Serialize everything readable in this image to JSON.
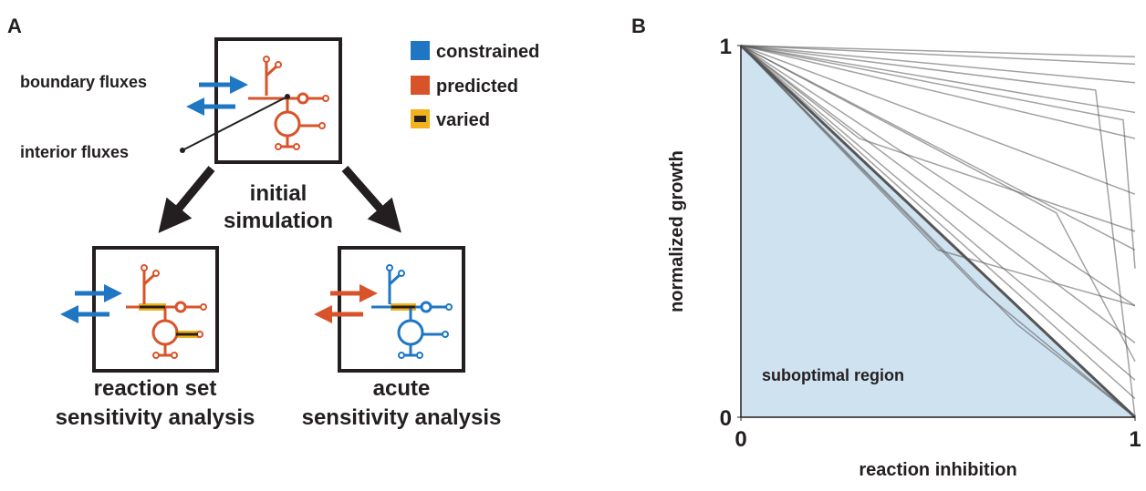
{
  "panel_a": {
    "label": "A",
    "boundary_fluxes": "boundary fluxes",
    "interior_fluxes": "interior fluxes",
    "initial_simulation": [
      "initial",
      "simulation"
    ],
    "legend": [
      "constrained",
      "predicted",
      "varied"
    ],
    "reaction_set": [
      "reaction set",
      "sensitivity analysis"
    ],
    "acute": [
      "acute",
      "sensitivity analysis"
    ]
  },
  "chart_data": {
    "type": "line",
    "panel_label": "B",
    "x_label": "reaction inhibition",
    "y_label": "normalized growth",
    "annotation": "suboptimal region",
    "color": "#555555",
    "fill_color": "#cfe2f0",
    "xlim": [
      0,
      1
    ],
    "ylim": [
      0,
      1
    ],
    "xticks": [
      0,
      1
    ],
    "yticks": [
      0,
      1
    ],
    "series": [
      {
        "x": [
          0,
          1
        ],
        "values": [
          1,
          0.97
        ]
      },
      {
        "x": [
          0,
          1
        ],
        "values": [
          1,
          0.95
        ]
      },
      {
        "x": [
          0,
          1
        ],
        "values": [
          1,
          0.9
        ]
      },
      {
        "x": [
          0,
          1
        ],
        "values": [
          1,
          0.82
        ]
      },
      {
        "x": [
          0,
          1
        ],
        "values": [
          1,
          0.75
        ]
      },
      {
        "x": [
          0,
          1
        ],
        "values": [
          1,
          0.6
        ]
      },
      {
        "x": [
          0,
          1
        ],
        "values": [
          1,
          0.45
        ]
      },
      {
        "x": [
          0,
          1
        ],
        "values": [
          1,
          0.3
        ]
      },
      {
        "x": [
          0,
          1
        ],
        "values": [
          1,
          0.2
        ]
      },
      {
        "x": [
          0,
          1
        ],
        "values": [
          1,
          0.1
        ]
      },
      {
        "x": [
          0,
          1
        ],
        "values": [
          1,
          0.05
        ]
      },
      {
        "x": [
          0,
          0.9,
          1
        ],
        "values": [
          1,
          0.88,
          0
        ]
      },
      {
        "x": [
          0,
          0.97,
          1
        ],
        "values": [
          1,
          0.8,
          0.4
        ]
      },
      {
        "x": [
          0,
          0.5,
          1
        ],
        "values": [
          1,
          0.45,
          0.3
        ]
      },
      {
        "x": [
          0,
          0.6,
          1
        ],
        "values": [
          1,
          0.35,
          0
        ]
      },
      {
        "x": [
          0,
          0.7,
          1
        ],
        "values": [
          1,
          0.25,
          0
        ]
      },
      {
        "x": [
          0,
          0.3,
          1
        ],
        "values": [
          1,
          0.75,
          0.5
        ]
      },
      {
        "x": [
          0,
          0.8,
          1
        ],
        "values": [
          1,
          0.55,
          0.15
        ]
      },
      {
        "x": [
          0,
          1
        ],
        "values": [
          1,
          0
        ]
      }
    ]
  }
}
